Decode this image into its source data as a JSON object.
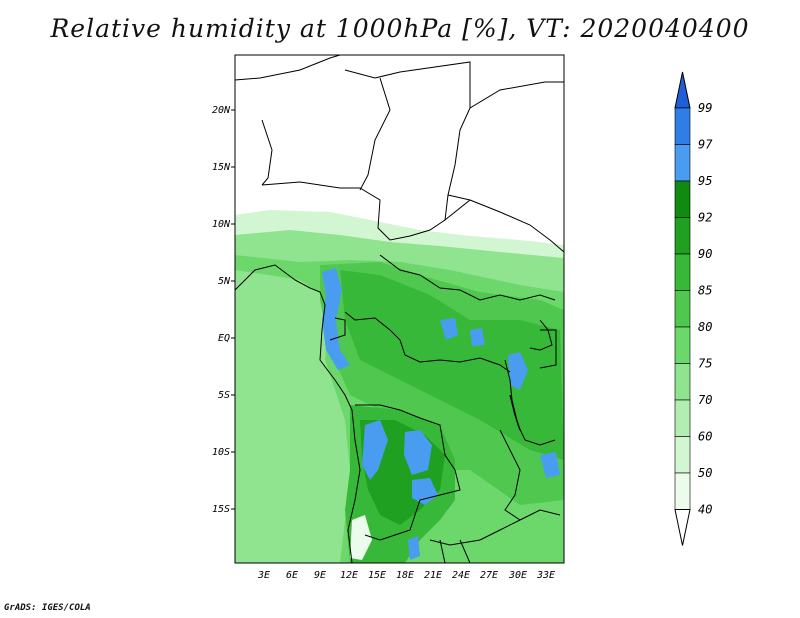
{
  "title": "Relative humidity at 1000hPa [%], VT: 2020040400",
  "credit": "GrADS: IGES/COLA",
  "map": {
    "lat_labels": [
      "20N",
      "15N",
      "10N",
      "5N",
      "EQ",
      "5S",
      "10S",
      "15S"
    ],
    "lon_labels": [
      "3E",
      "6E",
      "9E",
      "12E",
      "15E",
      "18E",
      "21E",
      "24E",
      "27E",
      "30E",
      "33E"
    ]
  },
  "colorbar": {
    "levels": [
      {
        "value": "99",
        "color": "#1e5fd8"
      },
      {
        "value": "97",
        "color": "#2e7ee6"
      },
      {
        "value": "95",
        "color": "#4a9cf0"
      },
      {
        "value": "92",
        "color": "#108a10"
      },
      {
        "value": "90",
        "color": "#20a020"
      },
      {
        "value": "85",
        "color": "#38b838"
      },
      {
        "value": "80",
        "color": "#50c850"
      },
      {
        "value": "75",
        "color": "#6cd86c"
      },
      {
        "value": "70",
        "color": "#90e490"
      },
      {
        "value": "60",
        "color": "#b2eeb2"
      },
      {
        "value": "50",
        "color": "#d2f6d2"
      },
      {
        "value": "40",
        "color": "#ecfcec"
      }
    ],
    "top_arrow_color": "#2e7ee6",
    "bottom_arrow_color": "#ffffff"
  }
}
